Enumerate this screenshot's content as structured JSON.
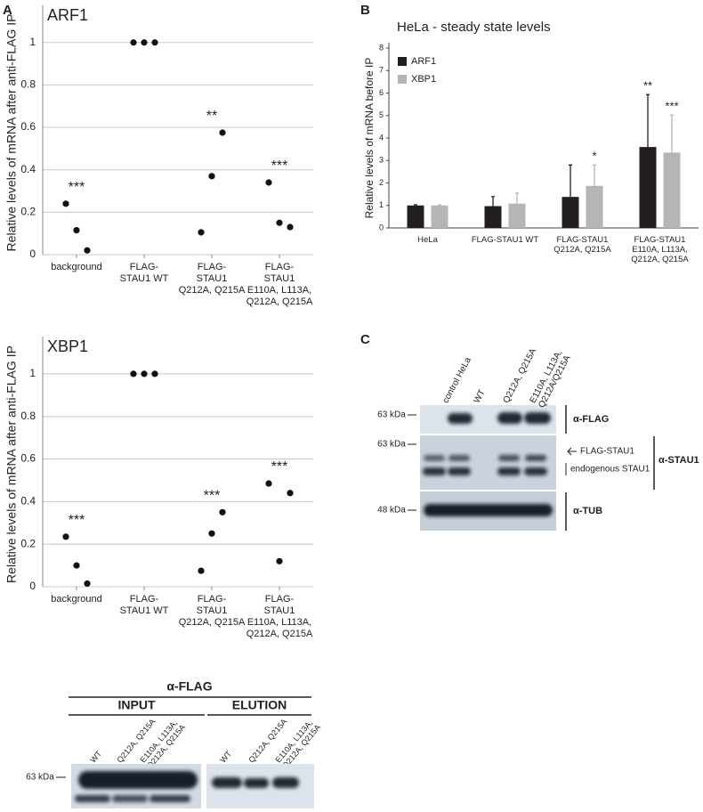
{
  "panels": [
    "A",
    "B",
    "C"
  ],
  "chart_data": [
    {
      "type": "dot",
      "title": "ARF1",
      "ylabel": "Relative levels of mRNA after anti-FLAG IP",
      "categories": [
        [
          "background"
        ],
        [
          "FLAG-",
          "STAU1 WT"
        ],
        [
          "FLAG-",
          "STAU1",
          "Q212A, Q215A"
        ],
        [
          "FLAG-",
          "STAU1",
          "E110A, L113A,",
          "Q212A, Q215A"
        ]
      ],
      "values": [
        [
          0.24,
          0.115,
          0.02
        ],
        [
          1,
          1,
          1
        ],
        [
          0.105,
          0.37,
          0.575
        ],
        [
          0.34,
          0.15,
          0.13
        ]
      ],
      "significance": [
        "***",
        null,
        "**",
        "***"
      ],
      "color": "#111111",
      "ylim": [
        0,
        1.15
      ],
      "yticks": [
        0,
        0.2,
        0.4,
        0.6,
        0.8,
        1
      ],
      "grid": true
    },
    {
      "type": "dot",
      "title": "XBP1",
      "ylabel": "Relative levels of mRNA after anti-FLAG IP",
      "categories": [
        [
          "background"
        ],
        [
          "FLAG-",
          "STAU1 WT"
        ],
        [
          "FLAG-",
          "STAU1",
          "Q212A, Q215A"
        ],
        [
          "FLAG-",
          "STAU1",
          "E110A, L113A,",
          "Q212A, Q215A"
        ]
      ],
      "values": [
        [
          0.235,
          0.1,
          0.015
        ],
        [
          1,
          1,
          1
        ],
        [
          0.075,
          0.25,
          0.35
        ],
        [
          0.485,
          0.12,
          0.44
        ]
      ],
      "significance": [
        "***",
        null,
        "***",
        "***"
      ],
      "color": "#111111",
      "ylim": [
        0,
        1.15
      ],
      "yticks": [
        0,
        0.2,
        0.4,
        0.6,
        0.8,
        1
      ],
      "grid": true
    },
    {
      "type": "bar",
      "title": "HeLa - steady state levels",
      "ylabel": "Relative levels of mRNA before IP",
      "categories": [
        [
          "HeLa"
        ],
        [
          "FLAG-STAU1 WT"
        ],
        [
          "FLAG-STAU1",
          "Q212A, Q215A"
        ],
        [
          "FLAG-STAU1",
          "E110A, L113A,",
          "Q212A, Q215A"
        ]
      ],
      "series": [
        {
          "name": "ARF1",
          "color": "#231f20",
          "values": [
            1,
            0.97,
            1.38,
            3.6
          ],
          "errors": [
            0.03,
            0.42,
            1.42,
            2.33
          ],
          "significance": [
            null,
            null,
            null,
            "**"
          ]
        },
        {
          "name": "XBP1",
          "color": "#b3b6b5",
          "values": [
            1,
            1.08,
            1.87,
            3.35
          ],
          "errors": [
            0.03,
            0.47,
            0.93,
            1.67
          ],
          "significance": [
            null,
            null,
            "*",
            "***"
          ]
        }
      ],
      "ylim": [
        0,
        8
      ],
      "yticks": [
        0,
        1,
        2,
        3,
        4,
        5,
        6,
        7,
        8
      ],
      "legend": "upper left"
    }
  ],
  "blot_c": {
    "lanes": [
      [
        "control HeLa"
      ],
      [
        "WT"
      ],
      [
        "Q212A, Q215A"
      ],
      [
        "E110A, L113A,",
        "Q212A/Q215A"
      ]
    ],
    "markers": [
      "63 kDa",
      "63 kDa",
      "48 kDa"
    ],
    "antibodies": [
      "α-FLAG",
      "α-STAU1",
      "α-TUB"
    ],
    "bands": [
      "FLAG-STAU1",
      "endogenous STAU1"
    ]
  },
  "blot_a": {
    "antibody": "α-FLAG",
    "groups": [
      "INPUT",
      "ELUTION"
    ],
    "lanes": [
      [
        "WT"
      ],
      [
        "Q212A, Q215A"
      ],
      [
        "E110A, L113A,",
        "Q212A, Q215A"
      ]
    ],
    "marker": "63 kDa"
  }
}
